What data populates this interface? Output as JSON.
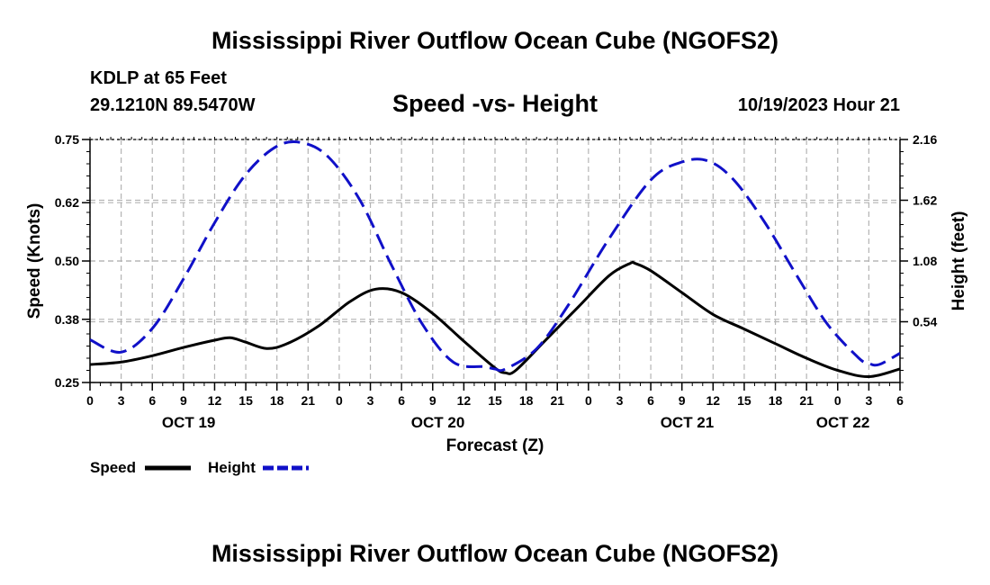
{
  "page_title": "Mississippi River Outflow Ocean Cube (NGOFS2)",
  "footer_title": "Mississippi River Outflow Ocean Cube (NGOFS2)",
  "station": {
    "line1": "KDLP at 65 Feet",
    "line2": "29.1210N  89.5470W"
  },
  "valid_time": "10/19/2023 Hour 21",
  "colors": {
    "speed": "#000000",
    "height": "#1010c8",
    "grid": "#b4b4b4"
  },
  "chart_data": {
    "type": "line",
    "title": "Speed -vs- Height",
    "xlabel": "Forecast (Z)",
    "ylabel": "Speed (Knots)",
    "y2label": "Height (feet)",
    "xlim": [
      0,
      78
    ],
    "ylim": [
      0.25,
      0.75
    ],
    "y2lim": [
      0.0,
      2.16
    ],
    "xticks": [
      0,
      3,
      6,
      9,
      12,
      15,
      18,
      21,
      24,
      27,
      30,
      33,
      36,
      39,
      42,
      45,
      48,
      51,
      54,
      57,
      60,
      63,
      66,
      69,
      72,
      75,
      78
    ],
    "xtick_labels": [
      "0",
      "3",
      "6",
      "9",
      "12",
      "15",
      "18",
      "21",
      "0",
      "3",
      "6",
      "9",
      "12",
      "15",
      "18",
      "21",
      "0",
      "3",
      "6",
      "9",
      "12",
      "15",
      "18",
      "21",
      "0",
      "3",
      "6"
    ],
    "yticks": [
      0.25,
      0.38,
      0.5,
      0.62,
      0.75
    ],
    "ytick_labels": [
      "0.25",
      "0.38",
      "0.50",
      "0.62",
      "0.75"
    ],
    "y2ticks": [
      0.54,
      1.08,
      1.62,
      2.16
    ],
    "y2tick_labels": [
      "0.54",
      "1.08",
      "1.62",
      "2.16"
    ],
    "day_labels": [
      {
        "x": 9.5,
        "label": "OCT 19"
      },
      {
        "x": 33.5,
        "label": "OCT 20"
      },
      {
        "x": 57.5,
        "label": "OCT 21"
      },
      {
        "x": 72.5,
        "label": "OCT 22"
      }
    ],
    "series": [
      {
        "name": "Speed",
        "axis": "left",
        "style": "solid",
        "x": [
          0,
          3,
          6,
          9,
          12,
          13.5,
          15,
          17,
          19,
          22,
          25,
          27.5,
          30,
          33,
          36,
          39,
          40,
          41,
          44,
          47,
          50,
          52,
          52.5,
          54,
          57,
          60,
          63,
          66,
          69,
          72,
          75,
          78
        ],
        "y": [
          0.287,
          0.292,
          0.305,
          0.322,
          0.337,
          0.342,
          0.333,
          0.32,
          0.33,
          0.366,
          0.416,
          0.442,
          0.435,
          0.392,
          0.335,
          0.28,
          0.27,
          0.275,
          0.34,
          0.405,
          0.47,
          0.495,
          0.495,
          0.48,
          0.435,
          0.39,
          0.36,
          0.33,
          0.3,
          0.275,
          0.262,
          0.278
        ]
      },
      {
        "name": "Height",
        "axis": "right",
        "style": "dashed",
        "x": [
          0,
          3,
          6,
          9,
          12,
          15,
          18,
          20.5,
          23,
          26,
          29,
          32,
          35,
          38,
          39,
          40,
          43,
          46,
          50,
          54,
          57,
          59.5,
          62,
          65,
          68,
          71,
          74,
          75,
          76,
          78
        ],
        "y": [
          0.38,
          0.27,
          0.48,
          0.92,
          1.42,
          1.85,
          2.1,
          2.13,
          2.0,
          1.62,
          1.05,
          0.52,
          0.18,
          0.14,
          0.12,
          0.12,
          0.3,
          0.68,
          1.28,
          1.8,
          1.96,
          1.97,
          1.8,
          1.42,
          0.96,
          0.52,
          0.22,
          0.17,
          0.16,
          0.26
        ]
      }
    ]
  },
  "legend": {
    "speed_label": "Speed",
    "height_label": "Height"
  }
}
